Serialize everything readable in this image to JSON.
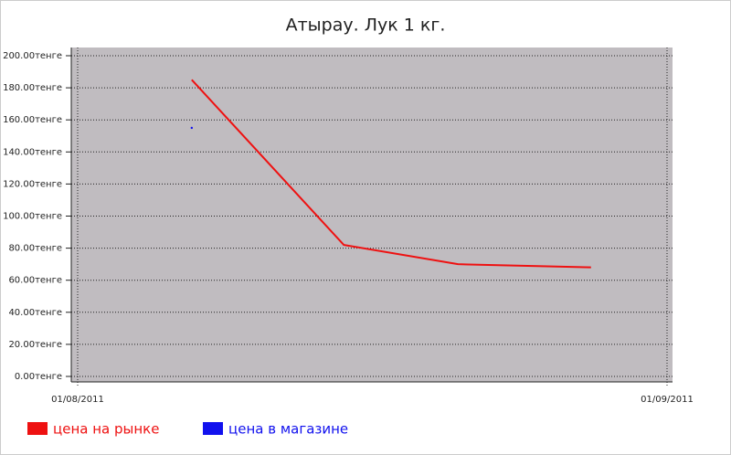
{
  "chart_data": {
    "type": "line",
    "title": "Атырау. Лук 1 кг.",
    "x": [
      "07/08/2011",
      "15/08/2011",
      "21/08/2011",
      "28/08/2011"
    ],
    "xlim": [
      "01/08/2011",
      "01/09/2011"
    ],
    "xticks": [
      "01/08/2011",
      "01/09/2011"
    ],
    "ylim": [
      0,
      200
    ],
    "yticks": [
      {
        "value": 0,
        "label": "0.00тенге"
      },
      {
        "value": 20,
        "label": "20.00тенге"
      },
      {
        "value": 40,
        "label": "40.00тенге"
      },
      {
        "value": 60,
        "label": "60.00тенге"
      },
      {
        "value": 80,
        "label": "80.00тенге"
      },
      {
        "value": 100,
        "label": "100.00тенге"
      },
      {
        "value": 120,
        "label": "120.00тенге"
      },
      {
        "value": 140,
        "label": "140.00тенге"
      },
      {
        "value": 160,
        "label": "160.00тенге"
      },
      {
        "value": 180,
        "label": "180.00тенге"
      },
      {
        "value": 200,
        "label": "200.00тенге"
      }
    ],
    "grid": true,
    "series": [
      {
        "name": "цена на рынке",
        "color": "#ee1111",
        "values": [
          185,
          82,
          70,
          68
        ]
      },
      {
        "name": "цена в магазине",
        "color": "#1111ee",
        "values": [
          155,
          null,
          null,
          null
        ]
      }
    ]
  }
}
